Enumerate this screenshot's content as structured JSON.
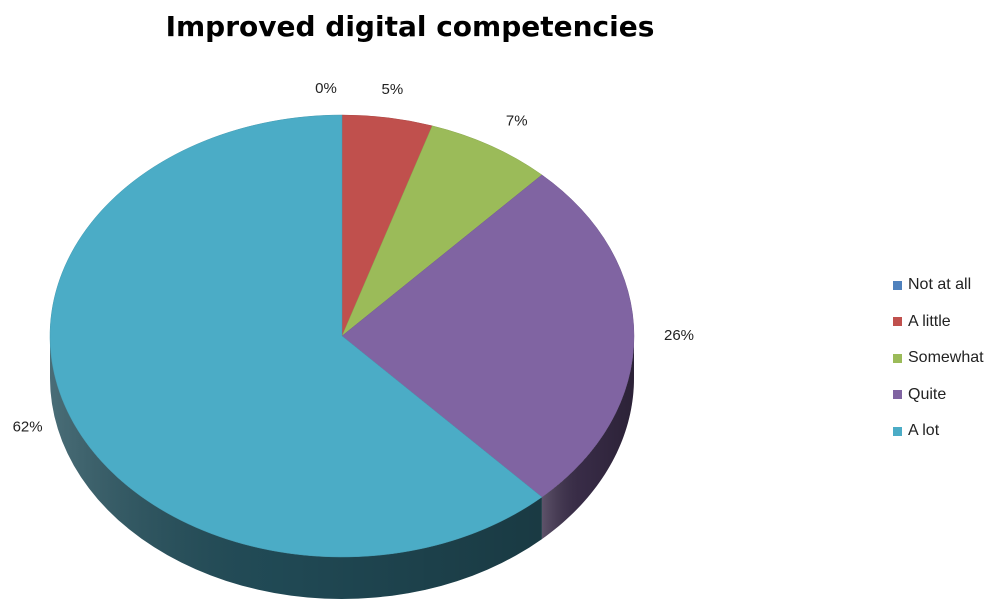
{
  "chart_data": {
    "type": "pie",
    "title": "Improved digital competencies",
    "categories": [
      "Not at all",
      "A little",
      "Somewhat",
      "Quite",
      "A lot"
    ],
    "values": [
      0,
      5,
      7,
      26,
      62
    ],
    "labels": [
      "0%",
      "5%",
      "7%",
      "26%",
      "62%"
    ],
    "colors": [
      "#4f81bd",
      "#c0504d",
      "#9bbb59",
      "#8064a2",
      "#4bacc6"
    ],
    "style": "3d",
    "legend_position": "right"
  }
}
